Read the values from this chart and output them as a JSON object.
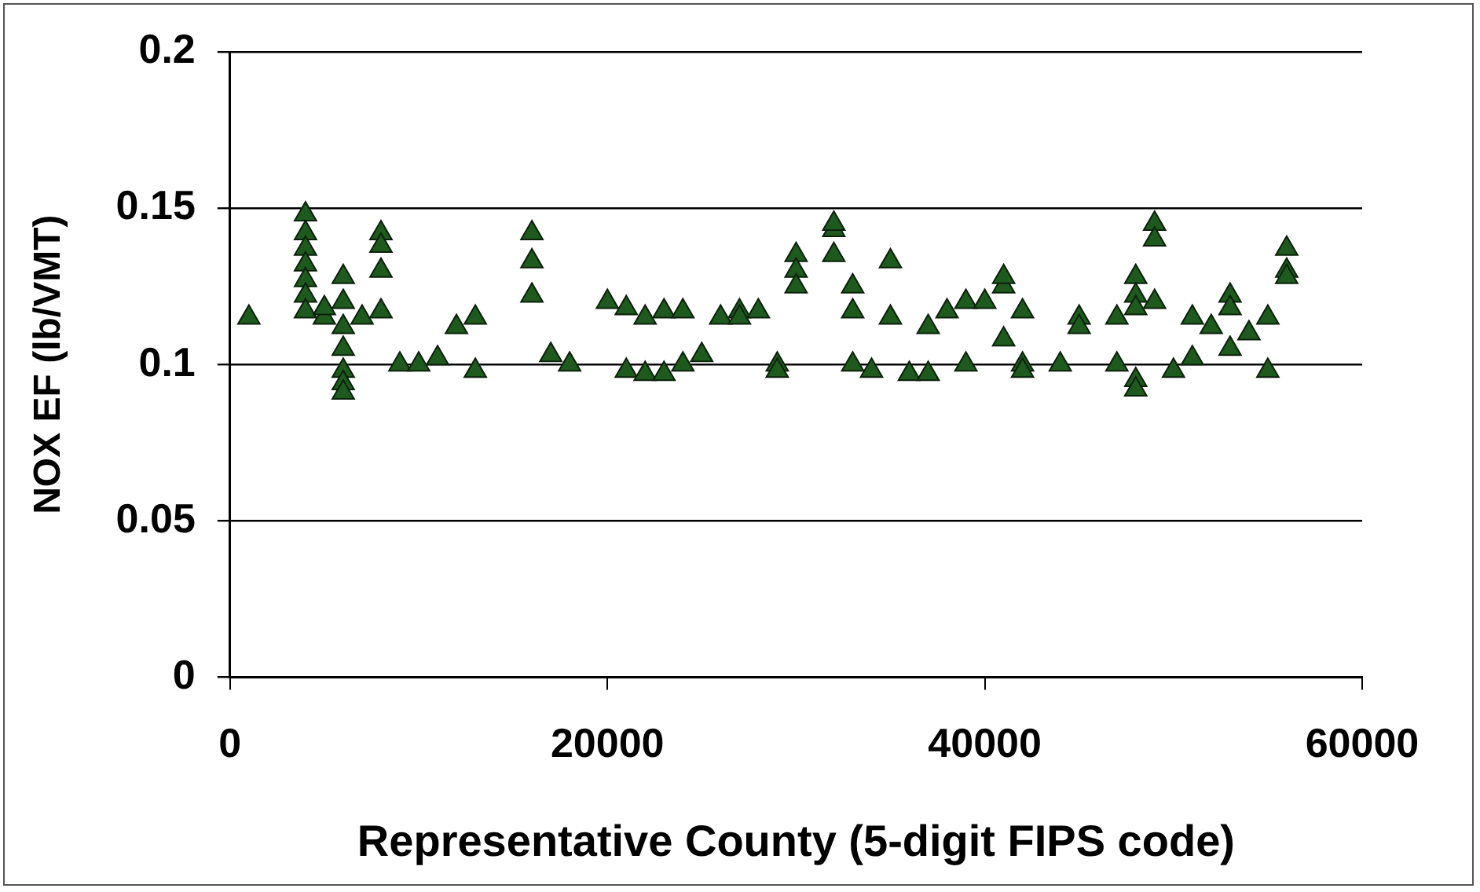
{
  "chart_data": {
    "type": "scatter",
    "xlabel": "Representative County (5-digit FIPS code)",
    "ylabel": "NOX EF (lb/VMT)",
    "xlim": [
      0,
      60000
    ],
    "xticks": [
      0,
      20000,
      40000,
      60000
    ],
    "ylim": [
      0,
      0.2
    ],
    "yticks": [
      0,
      0.05,
      0.1,
      0.15,
      0.2
    ],
    "grid": "y",
    "marker": "triangle",
    "legend": false,
    "series": [
      {
        "color": "#1e5a1e",
        "x": [
          1000,
          4000,
          4000,
          4000,
          4000,
          4000,
          4000,
          4000,
          5000,
          5000,
          6000,
          6000,
          6000,
          6000,
          6000,
          6000,
          6000,
          7000,
          8000,
          8000,
          8000,
          8000,
          9000,
          10000,
          11000,
          12000,
          13000,
          13000,
          16000,
          16000,
          16000,
          17000,
          18000,
          20000,
          21000,
          21000,
          22000,
          22000,
          23000,
          23000,
          24000,
          24000,
          25000,
          26000,
          27000,
          27000,
          28000,
          29000,
          29000,
          30000,
          30000,
          30000,
          32000,
          32000,
          32000,
          33000,
          33000,
          33000,
          34000,
          35000,
          35000,
          36000,
          37000,
          37000,
          38000,
          39000,
          39000,
          40000,
          41000,
          41000,
          41000,
          42000,
          42000,
          42000,
          44000,
          45000,
          45000,
          47000,
          47000,
          48000,
          48000,
          48000,
          48000,
          48000,
          49000,
          49000,
          49000,
          50000,
          51000,
          51000,
          52000,
          53000,
          53000,
          53000,
          54000,
          55000,
          55000,
          56000,
          56000,
          56000
        ],
        "values": [
          0.115,
          0.148,
          0.142,
          0.137,
          0.132,
          0.127,
          0.122,
          0.117,
          0.115,
          0.118,
          0.128,
          0.12,
          0.112,
          0.105,
          0.098,
          0.094,
          0.091,
          0.115,
          0.142,
          0.138,
          0.13,
          0.117,
          0.1,
          0.1,
          0.102,
          0.112,
          0.115,
          0.098,
          0.142,
          0.133,
          0.122,
          0.103,
          0.1,
          0.12,
          0.118,
          0.098,
          0.115,
          0.097,
          0.117,
          0.097,
          0.117,
          0.1,
          0.103,
          0.115,
          0.117,
          0.115,
          0.117,
          0.1,
          0.098,
          0.135,
          0.13,
          0.125,
          0.143,
          0.135,
          0.145,
          0.125,
          0.117,
          0.1,
          0.098,
          0.133,
          0.115,
          0.097,
          0.097,
          0.112,
          0.117,
          0.12,
          0.1,
          0.12,
          0.125,
          0.128,
          0.108,
          0.117,
          0.1,
          0.098,
          0.1,
          0.115,
          0.112,
          0.1,
          0.115,
          0.128,
          0.122,
          0.095,
          0.092,
          0.118,
          0.145,
          0.14,
          0.12,
          0.098,
          0.115,
          0.102,
          0.112,
          0.122,
          0.118,
          0.105,
          0.11,
          0.115,
          0.098,
          0.137,
          0.13,
          0.128
        ]
      }
    ]
  }
}
